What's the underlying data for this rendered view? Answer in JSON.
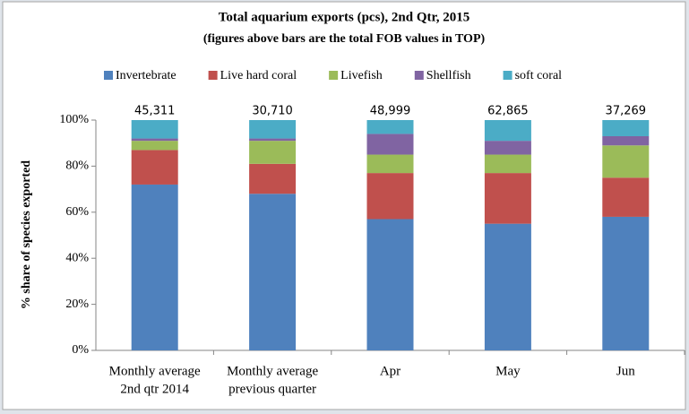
{
  "chart_data": {
    "type": "stacked_bar",
    "title": "Total aquarium exports (pcs), 2nd Qtr, 2015",
    "subtitle": "(figures above bars are the total FOB values in TOP)",
    "y_label": "% share of species exported",
    "categories": [
      [
        "Monthly average",
        "2nd qtr 2014"
      ],
      [
        "Monthly average",
        "previous quarter"
      ],
      [
        "Apr"
      ],
      [
        "May"
      ],
      [
        "Jun"
      ]
    ],
    "series": [
      {
        "name": "Invertebrate",
        "color": "#4f81bd",
        "values": [
          72,
          68,
          57,
          55,
          58
        ]
      },
      {
        "name": "Live hard coral",
        "color": "#c0504d",
        "values": [
          15,
          13,
          20,
          22,
          17
        ]
      },
      {
        "name": "Livefish",
        "color": "#9bbb59",
        "values": [
          4,
          10,
          8,
          8,
          14
        ]
      },
      {
        "name": "Shellfish",
        "color": "#8064a2",
        "values": [
          1,
          1,
          9,
          6,
          4
        ]
      },
      {
        "name": "soft coral",
        "color": "#4bacc6",
        "values": [
          8,
          8,
          6,
          9,
          7
        ]
      }
    ],
    "totals": {
      "values": [
        45311,
        30710,
        48999,
        62865,
        37269
      ],
      "value_labels": [
        "45,311",
        "30,710",
        "48,999",
        "62,865",
        "37,269"
      ]
    },
    "ylim": [
      0,
      100
    ],
    "yticks": [
      {
        "value": 0,
        "label": "0%"
      },
      {
        "value": 20,
        "label": "20%"
      },
      {
        "value": 40,
        "label": "40%"
      },
      {
        "value": 60,
        "label": "60%"
      },
      {
        "value": 80,
        "label": "80%"
      },
      {
        "value": 100,
        "label": "100%"
      }
    ],
    "grid": false,
    "legend": "top"
  }
}
